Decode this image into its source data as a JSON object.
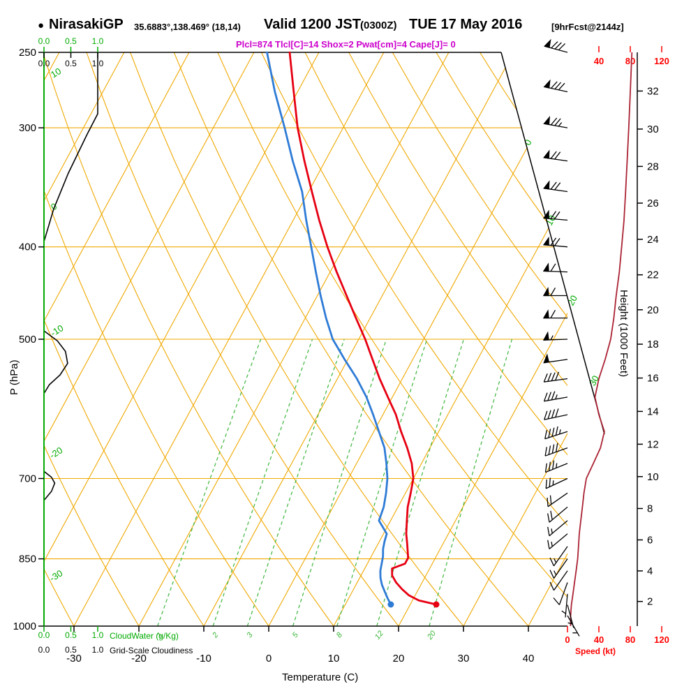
{
  "header": {
    "bullet": "●",
    "station": "NirasakiGP",
    "coords": "35.6883°,138.469° (18,14)",
    "valid_label": "Valid 1200 JST",
    "valid_z": "(0300Z)",
    "valid_date": "TUE 17 May 2016",
    "fcst_note": "[9hrFcst@2144z]",
    "params": "Plcl=874 Tlcl[C]=14 Shox=2 Pwat[cm]=4 Cape[J]= 0"
  },
  "colors": {
    "background": "#ffffff",
    "grid_orange": "#f0a800",
    "axis_green": "#00aa00",
    "mixing_green": "#3bb53b",
    "temp_red": "#e60012",
    "dew_blue": "#2e7bd6",
    "speed_curve_darkred": "#aa2233",
    "speed_axis_red": "#ff0000",
    "params_magenta": "#cc00cc",
    "frame_black": "#000000"
  },
  "axes": {
    "pressure": {
      "label": "P (hPa)",
      "ticks": [
        250,
        300,
        400,
        500,
        700,
        850,
        1000
      ]
    },
    "temperature": {
      "label": "Temperature (C)",
      "ticks": [
        -30,
        -20,
        -10,
        0,
        10,
        20,
        30,
        40
      ]
    },
    "height": {
      "label": "Height (1000 Feet)",
      "ticks": [
        2,
        4,
        6,
        8,
        10,
        12,
        14,
        16,
        18,
        20,
        22,
        24,
        26,
        28,
        30,
        32
      ]
    },
    "speed": {
      "label": "Speed (kt)",
      "top_ticks": [
        40,
        80,
        120
      ],
      "bottom_ticks": [
        0,
        40,
        80,
        120
      ]
    },
    "cloudwater": {
      "label": "CloudWater (g/Kg)",
      "ticks": [
        "0.0",
        "0.5",
        "1.0"
      ]
    },
    "cloudiness": {
      "label": "Grid-Scale Cloudiness",
      "ticks": [
        "0.0",
        "0.5",
        "1.0"
      ]
    }
  },
  "chart_data": {
    "type": "line",
    "subtype": "skew-t-log-p-sounding",
    "pressure_axis_hpa": [
      250,
      300,
      400,
      500,
      700,
      850,
      1000
    ],
    "temperature_axis_c": [
      -30,
      -20,
      -10,
      0,
      10,
      20,
      30,
      40
    ],
    "isotherm_label_right_c": [
      0,
      10,
      20,
      30
    ],
    "dry_adiabat_labels_c": [
      10,
      0,
      -10,
      -20,
      -30
    ],
    "mixing_ratio_g_kg": [
      1,
      2,
      3,
      5,
      8,
      12,
      20
    ],
    "surface": {
      "pressure_hpa": 949,
      "temperature_c": 24,
      "dewpoint_c": 17
    },
    "series": [
      {
        "name": "temperature_c",
        "color": "temp_red",
        "points": [
          [
            949,
            24
          ],
          [
            940,
            21
          ],
          [
            928,
            19
          ],
          [
            915,
            17.5
          ],
          [
            900,
            16
          ],
          [
            885,
            14.8
          ],
          [
            870,
            14.2
          ],
          [
            860,
            15.8
          ],
          [
            848,
            15.8
          ],
          [
            820,
            14.5
          ],
          [
            800,
            13.5
          ],
          [
            775,
            12.5
          ],
          [
            750,
            11.5
          ],
          [
            725,
            10.8
          ],
          [
            700,
            10
          ],
          [
            675,
            8.5
          ],
          [
            650,
            6.5
          ],
          [
            625,
            4.2
          ],
          [
            600,
            2
          ],
          [
            575,
            -0.7
          ],
          [
            550,
            -3.5
          ],
          [
            525,
            -6.2
          ],
          [
            500,
            -9
          ],
          [
            475,
            -12.2
          ],
          [
            450,
            -15.5
          ],
          [
            425,
            -19
          ],
          [
            400,
            -22.5
          ],
          [
            375,
            -26
          ],
          [
            350,
            -29.5
          ],
          [
            325,
            -33.2
          ],
          [
            300,
            -37
          ],
          [
            275,
            -40.6
          ],
          [
            250,
            -44.5
          ]
        ]
      },
      {
        "name": "dewpoint_c",
        "color": "dew_blue",
        "points": [
          [
            949,
            17
          ],
          [
            935,
            16
          ],
          [
            920,
            15
          ],
          [
            905,
            14
          ],
          [
            890,
            13.2
          ],
          [
            875,
            12.6
          ],
          [
            860,
            12.2
          ],
          [
            845,
            11.8
          ],
          [
            830,
            11.2
          ],
          [
            815,
            10.8
          ],
          [
            800,
            10.5
          ],
          [
            775,
            8.2
          ],
          [
            750,
            7.8
          ],
          [
            725,
            7
          ],
          [
            700,
            6
          ],
          [
            675,
            4.6
          ],
          [
            650,
            3
          ],
          [
            625,
            0.8
          ],
          [
            600,
            -1.5
          ],
          [
            575,
            -4
          ],
          [
            550,
            -7
          ],
          [
            525,
            -10.5
          ],
          [
            500,
            -14
          ],
          [
            475,
            -16.8
          ],
          [
            450,
            -19.5
          ],
          [
            425,
            -22.2
          ],
          [
            400,
            -25
          ],
          [
            375,
            -28
          ],
          [
            350,
            -31
          ],
          [
            325,
            -35
          ],
          [
            300,
            -39
          ],
          [
            275,
            -43.5
          ],
          [
            250,
            -48
          ]
        ]
      },
      {
        "name": "wind_speed_kt",
        "color": "speed_curve_darkred",
        "points": [
          [
            250,
            82
          ],
          [
            275,
            80
          ],
          [
            300,
            78
          ],
          [
            325,
            76
          ],
          [
            350,
            74
          ],
          [
            375,
            72
          ],
          [
            400,
            69
          ],
          [
            425,
            66
          ],
          [
            450,
            62
          ],
          [
            475,
            59
          ],
          [
            500,
            55
          ],
          [
            525,
            48
          ],
          [
            550,
            40
          ],
          [
            575,
            35
          ],
          [
            600,
            40
          ],
          [
            625,
            47
          ],
          [
            650,
            42
          ],
          [
            675,
            33
          ],
          [
            700,
            24
          ],
          [
            725,
            21
          ],
          [
            750,
            19
          ],
          [
            775,
            17
          ],
          [
            800,
            15
          ],
          [
            825,
            14
          ],
          [
            850,
            13
          ],
          [
            875,
            11
          ],
          [
            900,
            9
          ],
          [
            925,
            7
          ],
          [
            950,
            5
          ],
          [
            975,
            4
          ],
          [
            1000,
            4
          ]
        ]
      },
      {
        "name": "cloudiness_fraction",
        "color": "frame_black",
        "points": [
          [
            250,
            1.0
          ],
          [
            290,
            1.0
          ],
          [
            305,
            0.8
          ],
          [
            335,
            0.45
          ],
          [
            365,
            0.18
          ],
          [
            395,
            0
          ],
          [
            490,
            0
          ],
          [
            502,
            0.25
          ],
          [
            515,
            0.4
          ],
          [
            530,
            0.44
          ],
          [
            545,
            0.3
          ],
          [
            558,
            0.1
          ],
          [
            570,
            0
          ],
          [
            688,
            0
          ],
          [
            698,
            0.14
          ],
          [
            708,
            0.2
          ],
          [
            722,
            0.14
          ],
          [
            738,
            0
          ],
          [
            1000,
            0
          ]
        ]
      }
    ],
    "wind_barbs_p_dir_kt": [
      [
        975,
        150,
        4
      ],
      [
        950,
        165,
        5
      ],
      [
        925,
        185,
        7
      ],
      [
        900,
        200,
        9
      ],
      [
        875,
        215,
        11
      ],
      [
        850,
        215,
        13
      ],
      [
        825,
        215,
        14
      ],
      [
        800,
        230,
        15
      ],
      [
        775,
        230,
        17
      ],
      [
        750,
        230,
        20
      ],
      [
        725,
        235,
        22
      ],
      [
        700,
        245,
        25
      ],
      [
        675,
        248,
        33
      ],
      [
        650,
        250,
        40
      ],
      [
        625,
        252,
        45
      ],
      [
        600,
        258,
        40
      ],
      [
        575,
        260,
        35
      ],
      [
        550,
        262,
        40
      ],
      [
        525,
        262,
        48
      ],
      [
        500,
        268,
        55
      ],
      [
        475,
        270,
        58
      ],
      [
        450,
        270,
        60
      ],
      [
        425,
        272,
        62
      ],
      [
        400,
        275,
        68
      ],
      [
        375,
        275,
        70
      ],
      [
        350,
        278,
        72
      ],
      [
        325,
        278,
        72
      ],
      [
        300,
        280,
        75
      ],
      [
        275,
        282,
        78
      ],
      [
        250,
        285,
        80
      ]
    ]
  }
}
